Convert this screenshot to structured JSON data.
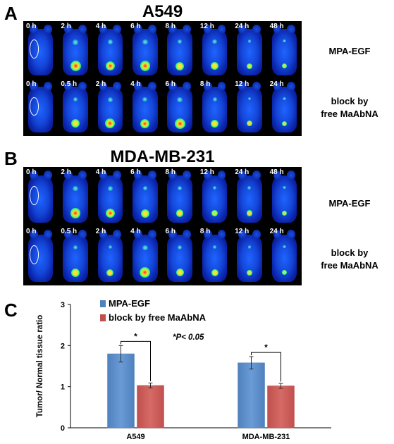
{
  "panelA": {
    "letter": "A",
    "title": "A549",
    "row1": {
      "label": "MPA-EGF",
      "times": [
        "0 h",
        "2 h",
        "4 h",
        "6 h",
        "8 h",
        "12 h",
        "24 h",
        "48 h"
      ],
      "hot": [
        0,
        0.9,
        0.7,
        0.85,
        0.6,
        0.55,
        0.2,
        0.1
      ]
    },
    "row2": {
      "label": "block by\nfree MaAbNA",
      "times": [
        "0 h",
        "0.5 h",
        "2 h",
        "4 h",
        "6 h",
        "8 h",
        "12 h",
        "24 h"
      ],
      "hot": [
        0,
        0.6,
        0.8,
        0.7,
        0.9,
        0.5,
        0.2,
        0.1
      ]
    }
  },
  "panelB": {
    "letter": "B",
    "title": "MDA-MB-231",
    "row1": {
      "label": "MPA-EGF",
      "times": [
        "0 h",
        "2 h",
        "4 h",
        "6 h",
        "8 h",
        "12 h",
        "24 h",
        "48 h"
      ],
      "hot": [
        0,
        0.85,
        0.7,
        0.6,
        0.45,
        0.35,
        0.25,
        0.1
      ]
    },
    "row2": {
      "label": "block by\nfree MaAbNA",
      "times": [
        "0 h",
        "0.5 h",
        "2 h",
        "4 h",
        "6 h",
        "8 h",
        "12 h",
        "24 h"
      ],
      "hot": [
        0,
        0.6,
        0.4,
        0.9,
        0.5,
        0.4,
        0.2,
        0.1
      ]
    }
  },
  "panelC": {
    "letter": "C"
  },
  "chart_data": {
    "type": "bar",
    "categories": [
      "A549",
      "MDA-MB-231"
    ],
    "series": [
      {
        "name": "MPA-EGF",
        "values": [
          1.8,
          1.58
        ],
        "errors": [
          0.2,
          0.15
        ],
        "color": "#4f81bd"
      },
      {
        "name": "block by free MaAbNA",
        "values": [
          1.03,
          1.02
        ],
        "errors": [
          0.06,
          0.06
        ],
        "color": "#c0504d"
      }
    ],
    "ylabel": "Tumor/ Normal tissue ratio",
    "ylim": [
      0,
      3
    ],
    "yticks": [
      "0",
      "1",
      "2",
      "3"
    ],
    "annotation": "*P< 0.05",
    "significance_marks": [
      "*",
      "*"
    ],
    "grid": false,
    "legend_position": "top-left"
  }
}
